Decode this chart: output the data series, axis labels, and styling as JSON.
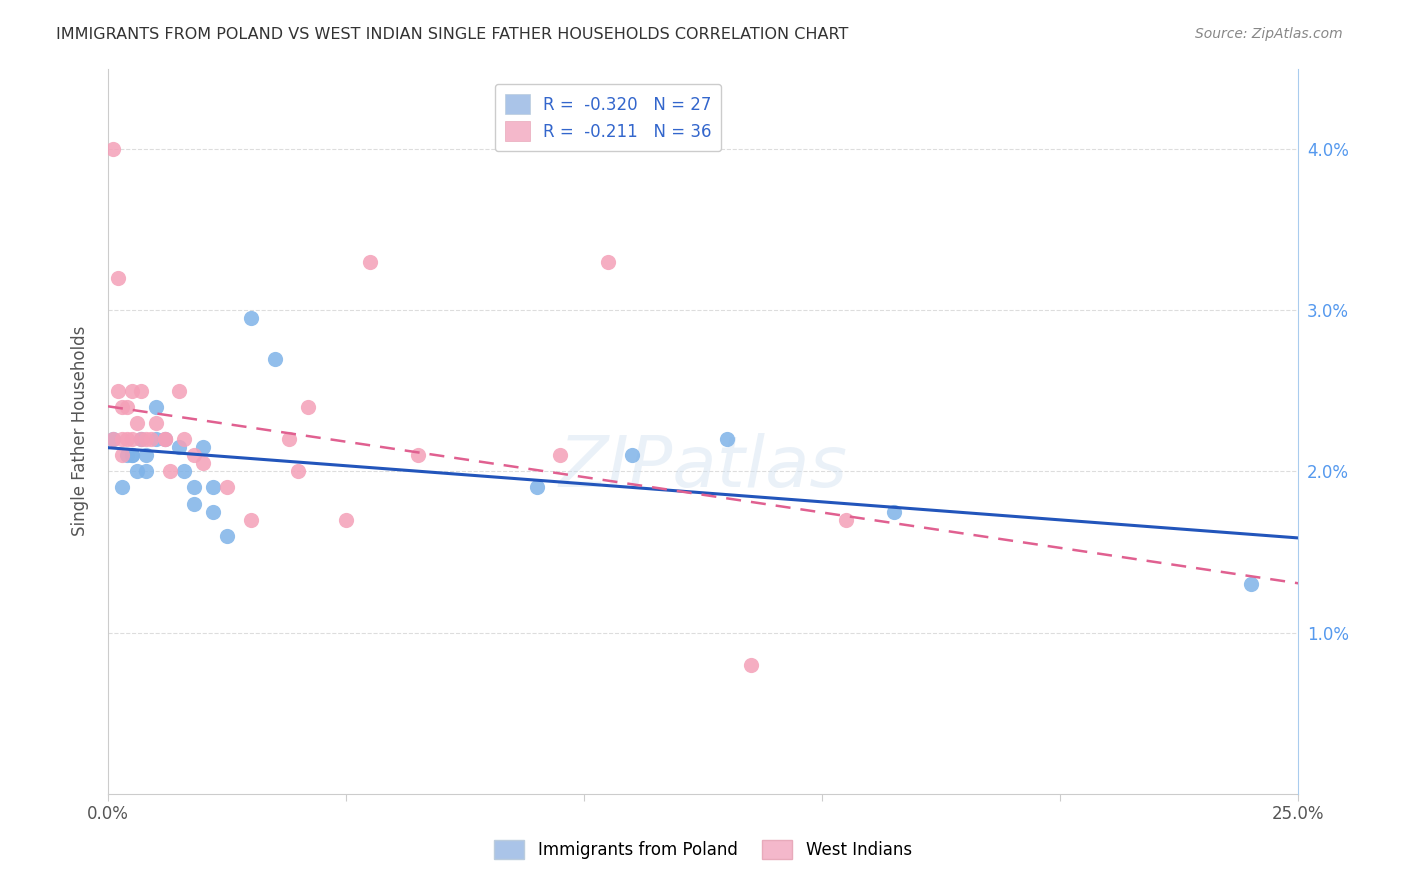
{
  "title": "IMMIGRANTS FROM POLAND VS WEST INDIAN SINGLE FATHER HOUSEHOLDS CORRELATION CHART",
  "source": "Source: ZipAtlas.com",
  "ylabel": "Single Father Households",
  "ylabel_right_ticks": [
    "1.0%",
    "2.0%",
    "3.0%",
    "4.0%"
  ],
  "ylabel_right_vals": [
    0.01,
    0.02,
    0.03,
    0.04
  ],
  "xlim": [
    0,
    0.25
  ],
  "ylim": [
    0,
    0.045
  ],
  "legend_line1": "R =  -0.320   N = 27",
  "legend_line2": "R =  -0.211   N = 36",
  "legend_color1": "#aac4e8",
  "legend_color2": "#f4b8cb",
  "poland_color": "#7fb3e8",
  "west_indian_color": "#f4a0b8",
  "trendline_poland_color": "#2255bb",
  "trendline_west_indian_color": "#e06090",
  "background_color": "#ffffff",
  "grid_color": "#dddddd",
  "poland_x": [
    0.001,
    0.003,
    0.004,
    0.005,
    0.005,
    0.006,
    0.007,
    0.008,
    0.008,
    0.01,
    0.01,
    0.012,
    0.015,
    0.016,
    0.018,
    0.018,
    0.02,
    0.022,
    0.022,
    0.025,
    0.03,
    0.035,
    0.09,
    0.11,
    0.13,
    0.165,
    0.24
  ],
  "poland_y": [
    0.022,
    0.019,
    0.021,
    0.021,
    0.021,
    0.02,
    0.022,
    0.021,
    0.02,
    0.022,
    0.024,
    0.022,
    0.0215,
    0.02,
    0.019,
    0.018,
    0.0215,
    0.0175,
    0.019,
    0.016,
    0.0295,
    0.027,
    0.019,
    0.021,
    0.022,
    0.0175,
    0.013
  ],
  "west_indian_x": [
    0.001,
    0.001,
    0.002,
    0.002,
    0.003,
    0.003,
    0.003,
    0.004,
    0.004,
    0.005,
    0.005,
    0.006,
    0.007,
    0.007,
    0.008,
    0.009,
    0.01,
    0.012,
    0.012,
    0.013,
    0.015,
    0.016,
    0.018,
    0.02,
    0.025,
    0.03,
    0.038,
    0.04,
    0.042,
    0.05,
    0.055,
    0.065,
    0.095,
    0.105,
    0.135,
    0.155
  ],
  "west_indian_y": [
    0.04,
    0.022,
    0.032,
    0.025,
    0.024,
    0.022,
    0.021,
    0.024,
    0.022,
    0.022,
    0.025,
    0.023,
    0.025,
    0.022,
    0.022,
    0.022,
    0.023,
    0.022,
    0.022,
    0.02,
    0.025,
    0.022,
    0.021,
    0.0205,
    0.019,
    0.017,
    0.022,
    0.02,
    0.024,
    0.017,
    0.033,
    0.021,
    0.021,
    0.033,
    0.008,
    0.017
  ],
  "watermark": "ZIPatlas",
  "marker_size": 120
}
